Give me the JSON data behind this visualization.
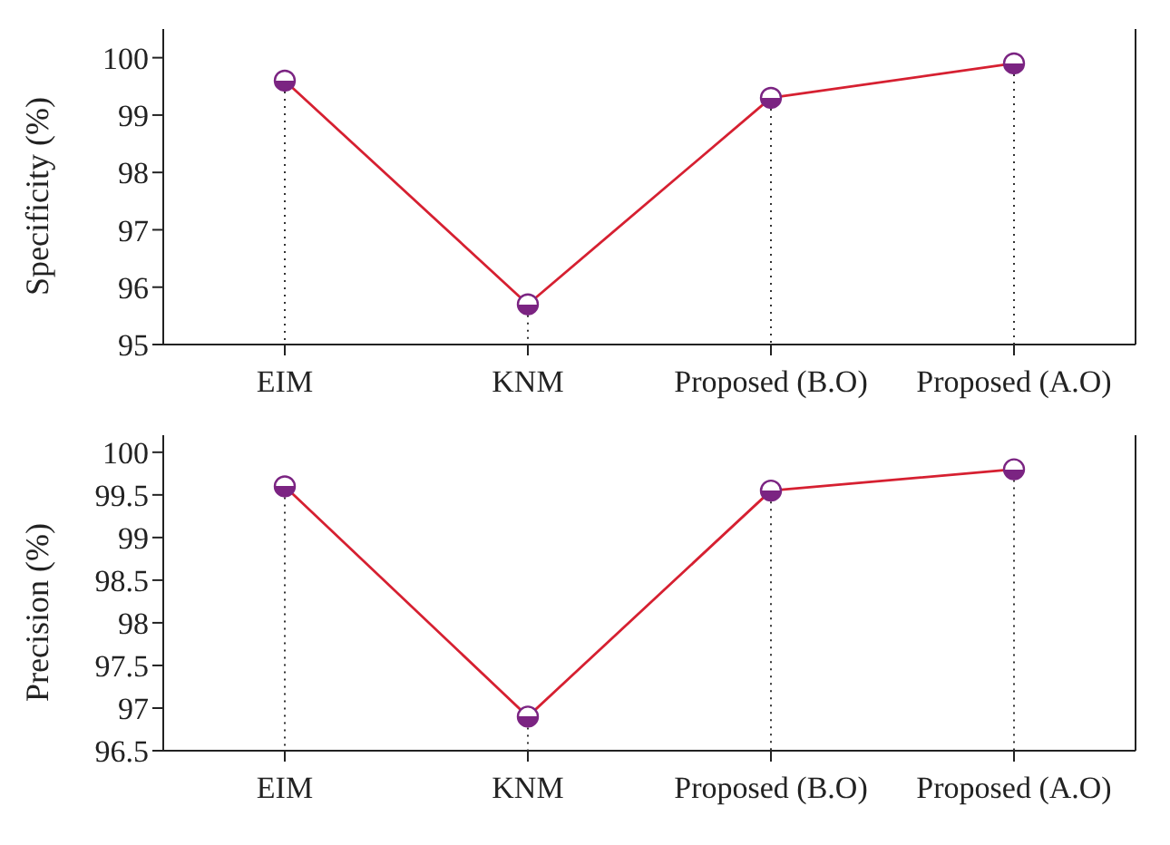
{
  "chart_data": [
    {
      "type": "line",
      "ylabel": "Specificity (%)",
      "categories": [
        "EIM",
        "KNM",
        "Proposed (B.O)",
        "Proposed (A.O)"
      ],
      "series": [
        {
          "color": "#d62031",
          "colors": [
            "#7b2482",
            "#7b2482",
            "#7b2482",
            "#7b2482"
          ],
          "values": [
            99.6,
            95.7,
            99.3,
            99.9
          ]
        }
      ],
      "ylim": [
        95,
        100.5
      ],
      "yticks": [
        95,
        96,
        97,
        98,
        99,
        100
      ],
      "grid": "x",
      "legend": false,
      "marker": "circle",
      "line_style": "solid"
    },
    {
      "type": "line",
      "ylabel": "Precision (%)",
      "categories": [
        "EIM",
        "KNM",
        "Proposed (B.O)",
        "Proposed (A.O)"
      ],
      "series": [
        {
          "color": "#d62031",
          "colors": [
            "#7b2482",
            "#7b2482",
            "#7b2482",
            "#7b2482"
          ],
          "values": [
            99.6,
            96.9,
            99.55,
            99.8
          ]
        }
      ],
      "ylim": [
        96.5,
        100.2
      ],
      "yticks": [
        96.5,
        97,
        97.5,
        98,
        98.5,
        99,
        99.5,
        100
      ],
      "grid": "x",
      "legend": false,
      "marker": "circle",
      "line_style": "solid"
    }
  ]
}
